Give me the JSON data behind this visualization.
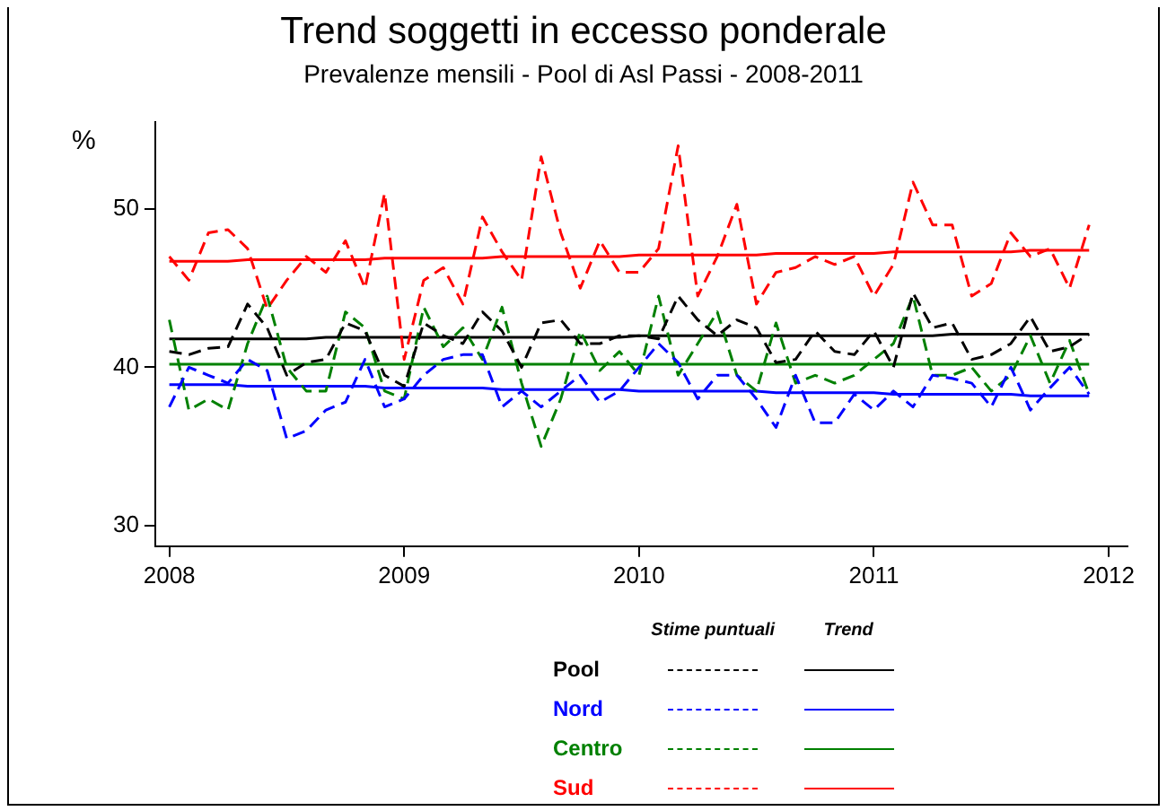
{
  "chart_data": {
    "type": "line",
    "title": "Trend soggetti in eccesso ponderale",
    "subtitle": "Prevalenze mensili - Pool di Asl Passi - 2008-2011",
    "ylabel": "%",
    "x": [
      2008,
      2008.0833,
      2008.1667,
      2008.25,
      2008.3333,
      2008.4167,
      2008.5,
      2008.5833,
      2008.6667,
      2008.75,
      2008.8333,
      2008.9167,
      2009,
      2009.0833,
      2009.1667,
      2009.25,
      2009.3333,
      2009.4167,
      2009.5,
      2009.5833,
      2009.6667,
      2009.75,
      2009.8333,
      2009.9167,
      2010,
      2010.0833,
      2010.1667,
      2010.25,
      2010.3333,
      2010.4167,
      2010.5,
      2010.5833,
      2010.6667,
      2010.75,
      2010.8333,
      2010.9167,
      2011,
      2011.0833,
      2011.1667,
      2011.25,
      2011.3333,
      2011.4167,
      2011.5,
      2011.5833,
      2011.6667,
      2011.75,
      2011.8333,
      2011.9167
    ],
    "series": [
      {
        "name": "Pool",
        "color": "#000000",
        "line_style": "dashed",
        "values": [
          41,
          40.8,
          41.2,
          41.3,
          44,
          42.5,
          39.5,
          40.3,
          40.5,
          42.8,
          42.3,
          39.5,
          38.8,
          42.8,
          42,
          41.5,
          43.5,
          42.3,
          40,
          42.8,
          43,
          41.5,
          41.5,
          42,
          42,
          41.8,
          44.5,
          43,
          42,
          43,
          42.5,
          40.3,
          40.5,
          42.3,
          41,
          40.8,
          42.3,
          40,
          44.7,
          42.5,
          42.8,
          40.5,
          40.8,
          41.5,
          43.2,
          41,
          41.3,
          42.1
        ]
      },
      {
        "name": "Nord",
        "color": "#0000ff",
        "line_style": "dashed",
        "values": [
          37.5,
          40,
          39.5,
          39,
          40.5,
          39.8,
          35.5,
          36,
          37.3,
          37.8,
          40.5,
          37.5,
          38,
          39.5,
          40.5,
          40.8,
          40.8,
          37.5,
          38.5,
          37.5,
          38.5,
          39.5,
          37.8,
          38.5,
          40,
          41.5,
          40.3,
          38,
          39.5,
          39.5,
          38,
          36.2,
          39.5,
          36.5,
          36.5,
          38.3,
          37.3,
          38.5,
          37.5,
          39.5,
          39.3,
          39,
          37.5,
          40,
          37.3,
          38.7,
          40,
          38.3
        ]
      },
      {
        "name": "Centro",
        "color": "#008000",
        "line_style": "dashed",
        "values": [
          43,
          37.3,
          38,
          37.3,
          41.5,
          44.5,
          40,
          38.5,
          38.5,
          43.5,
          42.5,
          38.5,
          38,
          43.8,
          41.3,
          42.5,
          40.5,
          43.8,
          39,
          35,
          38,
          42.3,
          39.8,
          41,
          39.5,
          44.5,
          39.5,
          41.5,
          43.5,
          39.5,
          38.5,
          42.8,
          39,
          39.5,
          39,
          39.5,
          40.5,
          41.5,
          44.5,
          39.5,
          39.5,
          40,
          38.5,
          39.5,
          42,
          39,
          41.7,
          38.3
        ]
      },
      {
        "name": "Sud",
        "color": "#ff0000",
        "line_style": "dashed",
        "values": [
          47,
          45.5,
          48.5,
          48.7,
          47.5,
          43.7,
          45.5,
          47,
          46,
          48,
          45,
          51,
          40.5,
          45.5,
          46.3,
          44,
          49.5,
          47.3,
          45.5,
          53.3,
          48.5,
          45,
          48,
          46,
          46,
          47.5,
          54,
          44.5,
          47,
          50.3,
          44,
          46,
          46.3,
          47,
          46.5,
          47,
          44.5,
          46.5,
          51.7,
          49,
          49,
          44.5,
          45.3,
          48.5,
          47,
          47.5,
          45,
          49
        ]
      },
      {
        "color": "#000000",
        "line_style": "solid",
        "values": [
          41.8,
          41.8,
          41.8,
          41.8,
          41.8,
          41.8,
          41.8,
          41.8,
          41.9,
          41.9,
          41.9,
          41.9,
          41.9,
          41.9,
          41.9,
          41.9,
          41.9,
          41.9,
          41.9,
          41.9,
          41.9,
          41.9,
          41.9,
          41.9,
          42,
          42,
          42,
          42,
          42,
          42,
          42,
          42,
          42,
          42,
          42,
          42,
          42,
          42,
          42,
          42,
          42.1,
          42.1,
          42.1,
          42.1,
          42.1,
          42.1,
          42.1,
          42.1
        ]
      },
      {
        "color": "#0000ff",
        "line_style": "solid",
        "values": [
          38.9,
          38.9,
          38.9,
          38.9,
          38.8,
          38.8,
          38.8,
          38.8,
          38.8,
          38.8,
          38.8,
          38.7,
          38.7,
          38.7,
          38.7,
          38.7,
          38.7,
          38.6,
          38.6,
          38.6,
          38.6,
          38.6,
          38.6,
          38.6,
          38.5,
          38.5,
          38.5,
          38.5,
          38.5,
          38.5,
          38.5,
          38.4,
          38.4,
          38.4,
          38.4,
          38.4,
          38.4,
          38.3,
          38.3,
          38.3,
          38.3,
          38.3,
          38.3,
          38.3,
          38.2,
          38.2,
          38.2,
          38.2
        ]
      },
      {
        "color": "#008000",
        "line_style": "solid",
        "values": [
          40.2,
          40.2,
          40.2,
          40.2,
          40.2,
          40.2,
          40.2,
          40.2,
          40.2,
          40.2,
          40.2,
          40.2,
          40.2,
          40.2,
          40.2,
          40.2,
          40.2,
          40.2,
          40.2,
          40.2,
          40.2,
          40.2,
          40.2,
          40.2,
          40.2,
          40.2,
          40.2,
          40.2,
          40.2,
          40.2,
          40.2,
          40.2,
          40.2,
          40.2,
          40.2,
          40.2,
          40.2,
          40.2,
          40.2,
          40.2,
          40.2,
          40.2,
          40.2,
          40.2,
          40.2,
          40.2,
          40.2,
          40.2
        ]
      },
      {
        "color": "#ff0000",
        "line_style": "solid",
        "values": [
          46.7,
          46.7,
          46.7,
          46.7,
          46.8,
          46.8,
          46.8,
          46.8,
          46.8,
          46.8,
          46.8,
          46.9,
          46.9,
          46.9,
          46.9,
          46.9,
          46.9,
          47,
          47,
          47,
          47,
          47,
          47,
          47,
          47.1,
          47.1,
          47.1,
          47.1,
          47.1,
          47.1,
          47.1,
          47.2,
          47.2,
          47.2,
          47.2,
          47.2,
          47.2,
          47.3,
          47.3,
          47.3,
          47.3,
          47.3,
          47.3,
          47.3,
          47.4,
          47.4,
          47.4,
          47.4
        ]
      }
    ],
    "annotations": [
      "Stime puntuali",
      "Trend"
    ],
    "xlim": [
      2007.94,
      2012.08
    ],
    "xticks": [
      2008,
      2009,
      2010,
      2011,
      2012
    ],
    "ylim": [
      28.7,
      55.5
    ],
    "yticks": [
      30,
      40,
      50
    ],
    "grid": false,
    "legend": "bottom",
    "marker": "none"
  }
}
